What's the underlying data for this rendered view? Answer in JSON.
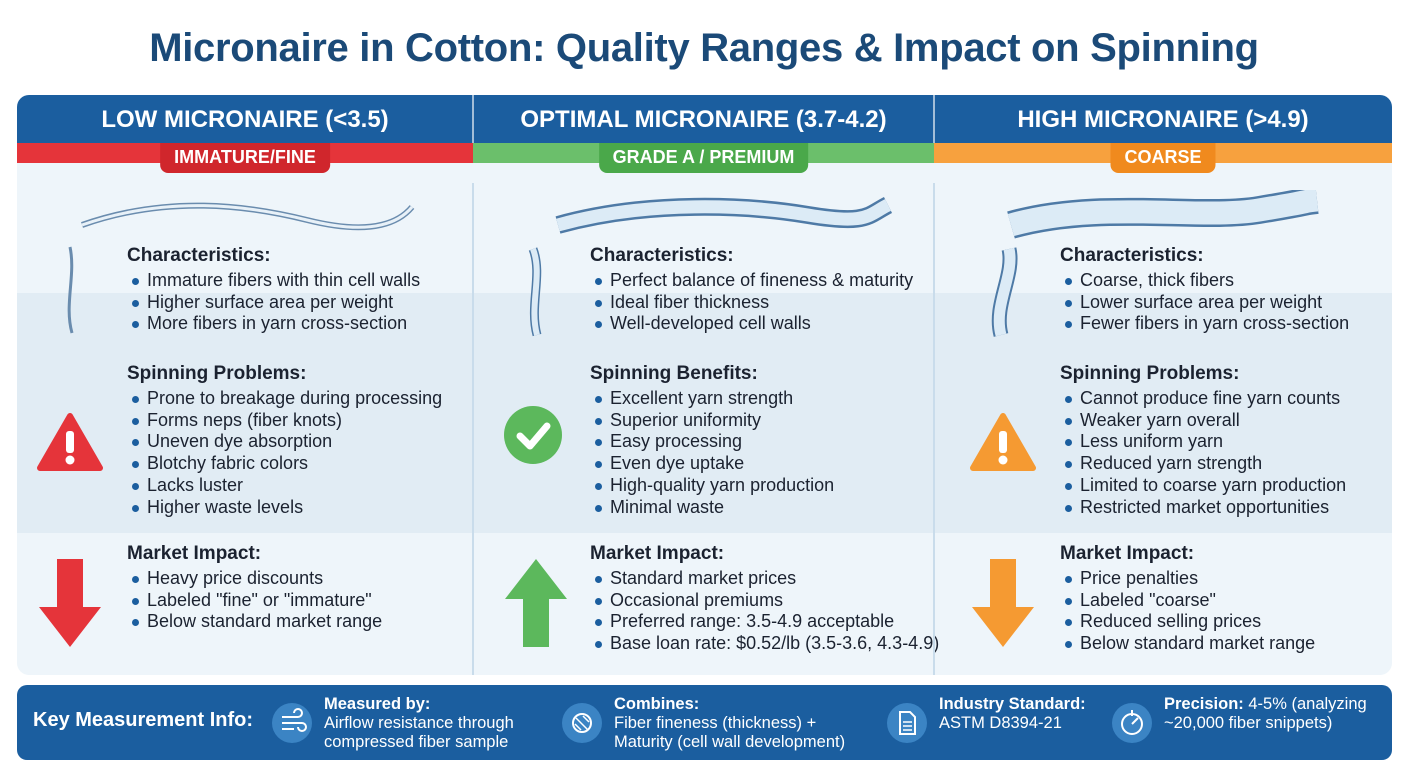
{
  "title": "Micronaire in Cotton: Quality Ranges & Impact on Spinning",
  "colors": {
    "header": "#1b5e9f",
    "low": "#e5343a",
    "optimal": "#5cb85c",
    "high": "#f59a32",
    "title": "#1b4a78"
  },
  "columns": [
    {
      "heading": "LOW MICRONAIRE (<3.5)",
      "badge": "IMMATURE/FINE",
      "status_icon": "warning-triangle-icon",
      "market_icon": "arrow-down-icon",
      "characteristics": {
        "title": "Characteristics:",
        "items": [
          "Immature fibers with thin cell walls",
          "Higher surface area per weight",
          "More fibers in yarn cross-section"
        ]
      },
      "spinning": {
        "title": "Spinning Problems:",
        "items": [
          "Prone to breakage during processing",
          "Forms neps (fiber knots)",
          "Uneven dye absorption",
          "Blotchy fabric colors",
          "Lacks luster",
          "Higher waste levels"
        ]
      },
      "market": {
        "title": "Market Impact:",
        "items": [
          "Heavy price discounts",
          "Labeled \"fine\" or \"immature\"",
          "Below standard market range"
        ]
      }
    },
    {
      "heading": "OPTIMAL MICRONAIRE (3.7-4.2)",
      "badge": "GRADE A / PREMIUM",
      "status_icon": "check-circle-icon",
      "market_icon": "arrow-up-icon",
      "characteristics": {
        "title": "Characteristics:",
        "items": [
          "Perfect balance of fineness & maturity",
          "Ideal fiber thickness",
          "Well-developed cell walls"
        ]
      },
      "spinning": {
        "title": "Spinning Benefits:",
        "items": [
          "Excellent yarn strength",
          "Superior uniformity",
          "Easy processing",
          "Even dye uptake",
          "High-quality yarn production",
          "Minimal waste"
        ]
      },
      "market": {
        "title": "Market Impact:",
        "items": [
          "Standard market prices",
          "Occasional premiums",
          "Preferred range: 3.5-4.9 acceptable",
          "Base loan rate: $0.52/lb (3.5-3.6, 4.3-4.9)"
        ]
      }
    },
    {
      "heading": "HIGH MICRONAIRE (>4.9)",
      "badge": "COARSE",
      "status_icon": "warning-triangle-icon",
      "market_icon": "arrow-down-icon",
      "characteristics": {
        "title": "Characteristics:",
        "items": [
          "Coarse, thick fibers",
          "Lower surface area per weight",
          "Fewer fibers in yarn cross-section"
        ]
      },
      "spinning": {
        "title": "Spinning Problems:",
        "items": [
          "Cannot produce fine yarn counts",
          "Weaker yarn overall",
          "Less uniform yarn",
          "Reduced yarn strength",
          "Limited to coarse yarn production",
          "Restricted market opportunities"
        ]
      },
      "market": {
        "title": "Market Impact:",
        "items": [
          "Price penalties",
          "Labeled \"coarse\"",
          "Reduced selling prices",
          "Below standard market range"
        ]
      }
    }
  ],
  "footer": {
    "label": "Key Measurement Info:",
    "items": [
      {
        "icon": "airflow-icon",
        "title": "Measured by:",
        "line1": "Airflow resistance through",
        "line2": "compressed fiber sample"
      },
      {
        "icon": "fiber-bundle-icon",
        "title": "Combines:",
        "line1": "Fiber fineness (thickness) +",
        "line2": "Maturity (cell wall development)"
      },
      {
        "icon": "document-icon",
        "title": "Industry Standard:",
        "line1": "ASTM D8394-21",
        "line2": ""
      },
      {
        "icon": "precision-target-icon",
        "title": "Precision:",
        "line1": " 4-5% (analyzing",
        "line2": "~20,000 fiber snippets)"
      }
    ]
  }
}
